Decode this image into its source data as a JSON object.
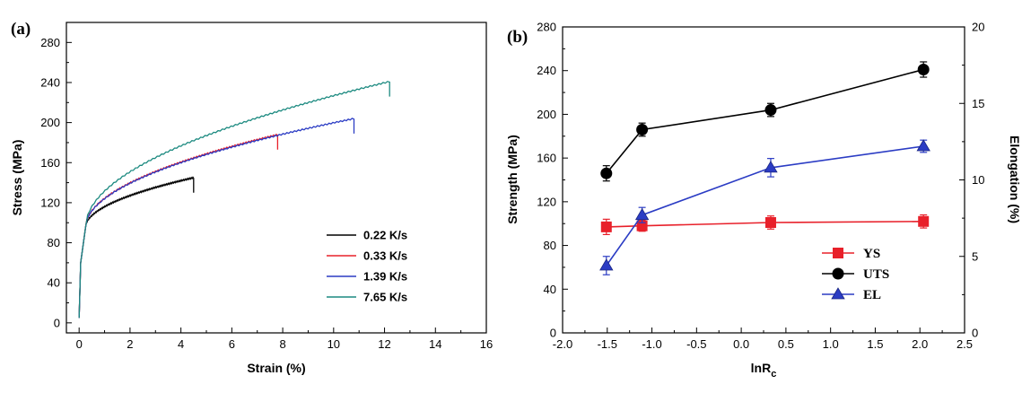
{
  "chart_data": [
    {
      "type": "line",
      "panel_label": "(a)",
      "xlabel": "Strain (%)",
      "ylabel": "Stress (MPa)",
      "xlim": [
        -0.5,
        16
      ],
      "ylim": [
        -10,
        300
      ],
      "xticks": [
        0,
        2,
        4,
        6,
        8,
        10,
        12,
        14,
        16
      ],
      "yticks": [
        0,
        40,
        80,
        120,
        160,
        200,
        240,
        280
      ],
      "grid": false,
      "legend_position": "bottom-right",
      "series": [
        {
          "name": "0.22 K/s",
          "color": "#000000",
          "fracture_strain": 4.5,
          "ultimate_stress": 145
        },
        {
          "name": "0.33 K/s",
          "color": "#e8202a",
          "fracture_strain": 7.8,
          "ultimate_stress": 188
        },
        {
          "name": "1.39 K/s",
          "color": "#2b3cc4",
          "fracture_strain": 10.8,
          "ultimate_stress": 204
        },
        {
          "name": "7.65 K/s",
          "color": "#1c8a80",
          "fracture_strain": 12.2,
          "ultimate_stress": 241
        }
      ]
    },
    {
      "type": "line",
      "panel_label": "(b)",
      "xlabel": "lnR",
      "xlabel_sub": "c",
      "ylabel": "Strength (MPa)",
      "ylabel_right": "Elongation (%)",
      "xlim": [
        -2.0,
        2.5
      ],
      "ylim": [
        0,
        280
      ],
      "ylim_right": [
        0,
        20
      ],
      "xticks": [
        "-2.0",
        "-1.5",
        "-1.0",
        "-0.5",
        "0.0",
        "0.5",
        "1.0",
        "1.5",
        "2.0",
        "2.5"
      ],
      "yticks": [
        0,
        40,
        80,
        120,
        160,
        200,
        240,
        280
      ],
      "yticks_right": [
        0,
        5,
        10,
        15,
        20
      ],
      "grid": false,
      "legend_position": "bottom-right",
      "x": [
        -1.51,
        -1.11,
        0.33,
        2.04
      ],
      "series": [
        {
          "name": "YS",
          "axis": "left",
          "marker": "square",
          "color": "#e8202a",
          "values": [
            97,
            98,
            101,
            102
          ],
          "errors": [
            7,
            5,
            6,
            6
          ]
        },
        {
          "name": "UTS",
          "axis": "left",
          "marker": "circle",
          "color": "#000000",
          "values": [
            146,
            186,
            204,
            241
          ],
          "errors": [
            7,
            6,
            6,
            7
          ]
        },
        {
          "name": "EL",
          "axis": "right",
          "marker": "triangle",
          "color": "#2b3cc4",
          "values": [
            4.4,
            7.7,
            10.8,
            12.2
          ],
          "errors": [
            0.6,
            0.5,
            0.6,
            0.4
          ]
        }
      ]
    }
  ]
}
